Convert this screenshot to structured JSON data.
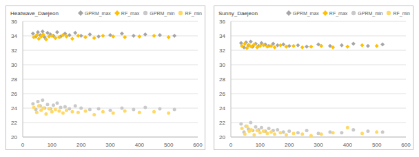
{
  "chart_data": [
    {
      "type": "scatter",
      "title": "Heatwave_Daejeon",
      "xlim": [
        0,
        600
      ],
      "xticks": [
        0,
        100,
        200,
        300,
        400,
        500,
        600
      ],
      "ylim": [
        20,
        36
      ],
      "yticks": [
        20,
        22,
        24,
        26,
        28,
        30,
        32,
        34,
        36
      ],
      "grid": true,
      "legend": "top-right",
      "series": [
        {
          "name": "GPRM_max",
          "color": "#a5a5a5",
          "marker": "diamond",
          "x": [
            35,
            45,
            52,
            60,
            68,
            75,
            85,
            95,
            105,
            118,
            130,
            145,
            160,
            180,
            200,
            230,
            260,
            300,
            340,
            380,
            420,
            470,
            520
          ],
          "values": [
            34.3,
            33.9,
            34.5,
            34.1,
            34.6,
            33.8,
            34.4,
            34.2,
            34.0,
            34.5,
            33.9,
            34.3,
            34.1,
            34.4,
            34.0,
            34.2,
            33.9,
            34.1,
            34.3,
            34.0,
            34.2,
            34.1,
            34.0
          ]
        },
        {
          "name": "RF_max",
          "color": "#ffc000",
          "marker": "diamond",
          "x": [
            38,
            48,
            55,
            63,
            70,
            80,
            90,
            100,
            112,
            125,
            138,
            150,
            170,
            190,
            215,
            245,
            275,
            310,
            350,
            400,
            450,
            500
          ],
          "values": [
            33.8,
            34.1,
            33.6,
            33.9,
            34.2,
            33.5,
            33.9,
            34.0,
            33.7,
            33.8,
            34.1,
            33.9,
            33.6,
            34.0,
            33.8,
            33.7,
            34.0,
            33.9,
            33.8,
            33.9,
            34.0,
            33.8
          ]
        },
        {
          "name": "GPRM_min",
          "color": "#c9c9c9",
          "marker": "circle",
          "x": [
            35,
            45,
            52,
            60,
            68,
            75,
            85,
            95,
            105,
            118,
            130,
            145,
            160,
            180,
            200,
            230,
            260,
            300,
            340,
            380,
            420,
            470,
            520
          ],
          "values": [
            24.6,
            23.8,
            24.9,
            24.3,
            25.1,
            24.0,
            24.5,
            23.9,
            24.4,
            24.7,
            24.1,
            24.2,
            23.9,
            24.3,
            24.0,
            23.8,
            23.9,
            23.7,
            24.0,
            23.8,
            24.1,
            23.9,
            23.8
          ]
        },
        {
          "name": "RF_min",
          "color": "#ffd966",
          "marker": "circle",
          "x": [
            38,
            48,
            55,
            63,
            70,
            80,
            90,
            100,
            112,
            125,
            138,
            150,
            170,
            190,
            215,
            245,
            275,
            310,
            350,
            400,
            450,
            500
          ],
          "values": [
            24.1,
            23.4,
            24.3,
            23.7,
            24.0,
            23.2,
            23.9,
            23.5,
            23.8,
            23.6,
            23.3,
            23.7,
            23.5,
            23.4,
            23.6,
            23.1,
            23.5,
            23.3,
            23.6,
            23.4,
            23.5,
            23.3
          ]
        }
      ]
    },
    {
      "type": "scatter",
      "title": "Sunny_Daejeon",
      "xlim": [
        0,
        600
      ],
      "xticks": [
        0,
        100,
        200,
        300,
        400,
        500,
        600
      ],
      "ylim": [
        20,
        36
      ],
      "yticks": [
        20,
        22,
        24,
        26,
        28,
        30,
        32,
        34,
        36
      ],
      "grid": true,
      "legend": "top-right",
      "series": [
        {
          "name": "GPRM_max",
          "color": "#a5a5a5",
          "marker": "diamond",
          "x": [
            35,
            45,
            52,
            60,
            68,
            75,
            85,
            95,
            105,
            118,
            130,
            145,
            160,
            180,
            200,
            230,
            260,
            300,
            340,
            380,
            420,
            470,
            520
          ],
          "values": [
            33.0,
            32.4,
            33.1,
            32.7,
            33.2,
            32.5,
            32.9,
            32.6,
            33.0,
            32.8,
            32.6,
            32.9,
            32.7,
            32.8,
            32.6,
            32.7,
            32.5,
            32.8,
            32.6,
            32.7,
            32.9,
            32.6,
            32.8
          ]
        },
        {
          "name": "RF_max",
          "color": "#ffc000",
          "marker": "diamond",
          "x": [
            38,
            48,
            55,
            63,
            70,
            80,
            90,
            100,
            112,
            125,
            138,
            150,
            170,
            190,
            215,
            245,
            275,
            310,
            350,
            400,
            450,
            500
          ],
          "values": [
            32.6,
            32.9,
            32.3,
            32.7,
            32.5,
            32.8,
            32.4,
            32.6,
            32.7,
            32.5,
            32.6,
            32.4,
            32.7,
            32.5,
            32.6,
            32.4,
            32.5,
            32.6,
            32.4,
            32.5,
            32.7,
            32.6
          ]
        },
        {
          "name": "GPRM_min",
          "color": "#c9c9c9",
          "marker": "circle",
          "x": [
            35,
            45,
            52,
            60,
            68,
            75,
            85,
            95,
            105,
            118,
            130,
            145,
            160,
            180,
            200,
            230,
            260,
            300,
            340,
            380,
            420,
            470,
            520
          ],
          "values": [
            21.8,
            20.7,
            21.5,
            21.1,
            22.0,
            20.9,
            21.4,
            21.0,
            21.3,
            20.8,
            21.2,
            20.9,
            21.0,
            20.7,
            20.8,
            20.6,
            20.9,
            20.5,
            20.7,
            20.6,
            21.0,
            20.8,
            20.7
          ]
        },
        {
          "name": "RF_min",
          "color": "#ffd966",
          "marker": "circle",
          "x": [
            38,
            48,
            55,
            63,
            70,
            80,
            90,
            100,
            112,
            125,
            138,
            150,
            170,
            190,
            215,
            245,
            275,
            310,
            350,
            400,
            450,
            500
          ],
          "values": [
            21.2,
            20.4,
            21.5,
            20.8,
            21.0,
            20.3,
            20.9,
            20.6,
            20.8,
            20.5,
            20.7,
            20.4,
            20.6,
            20.3,
            20.5,
            20.4,
            20.2,
            20.4,
            20.6,
            21.3,
            20.5,
            20.7
          ]
        }
      ]
    }
  ]
}
